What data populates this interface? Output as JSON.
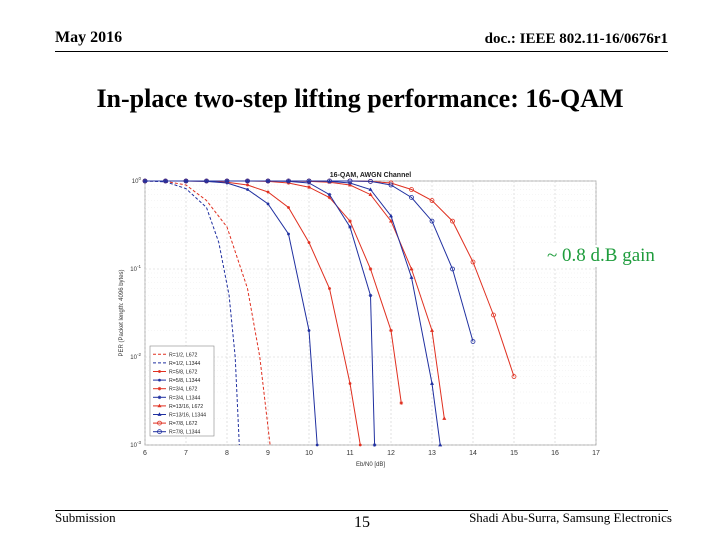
{
  "header": {
    "date": "May 2016",
    "doc_id": "doc.: IEEE 802.11-16/0676r1"
  },
  "slide": {
    "title": "In-place two-step lifting performance: 16-QAM",
    "annotation": "~ 0.8 d.B gain"
  },
  "footer": {
    "submission": "Submission",
    "page_number": "15",
    "author": "Shadi Abu-Surra, Samsung Electronics"
  },
  "chart_data": {
    "type": "line",
    "title": "16-QAM, AWGN Channel",
    "xlabel": "Eb/N0 [dB]",
    "ylabel": "PER (Packet length: 4096 bytes)",
    "xlim": [
      6,
      17
    ],
    "ylim": [
      0.001,
      1
    ],
    "yscale": "log",
    "x_ticks": [
      "6",
      "7",
      "8",
      "9",
      "10",
      "11",
      "12",
      "13",
      "14",
      "15",
      "16",
      "17"
    ],
    "y_ticks": [
      {
        "value": 1,
        "label": "10^0"
      },
      {
        "value": 0.1,
        "label": "10^-1"
      },
      {
        "value": 0.01,
        "label": "10^-2"
      },
      {
        "value": 0.001,
        "label": "10^-3"
      }
    ],
    "grid": true,
    "legend_position": "bottom-left",
    "series": [
      {
        "name": "R=1/2, L672",
        "color": "#e03020",
        "dash": true,
        "marker": "none",
        "x": [
          6,
          6.5,
          7,
          7.5,
          8,
          8.5,
          8.8,
          9.05
        ],
        "y": [
          1,
          0.99,
          0.9,
          0.6,
          0.3,
          0.06,
          0.01,
          0.001
        ]
      },
      {
        "name": "R=1/2, L1344",
        "color": "#2030a0",
        "dash": true,
        "marker": "none",
        "x": [
          6,
          6.5,
          7,
          7.5,
          7.8,
          8.05,
          8.2,
          8.3
        ],
        "y": [
          1,
          0.98,
          0.82,
          0.5,
          0.2,
          0.05,
          0.01,
          0.001
        ]
      },
      {
        "name": "R=5/8, L672",
        "color": "#e03020",
        "dash": false,
        "marker": "dot",
        "x": [
          6,
          6.5,
          7,
          7.5,
          8,
          8.5,
          9,
          9.5,
          10,
          10.5,
          11,
          11.25
        ],
        "y": [
          1,
          1,
          1,
          0.99,
          0.97,
          0.9,
          0.75,
          0.5,
          0.2,
          0.06,
          0.005,
          0.001
        ]
      },
      {
        "name": "R=5/8, L1344",
        "color": "#2030a0",
        "dash": false,
        "marker": "dot",
        "x": [
          6,
          6.5,
          7,
          7.5,
          8,
          8.5,
          9,
          9.5,
          10,
          10.2
        ],
        "y": [
          1,
          1,
          1,
          0.99,
          0.95,
          0.8,
          0.55,
          0.25,
          0.02,
          0.001
        ]
      },
      {
        "name": "R=3/4, L672",
        "color": "#e03020",
        "dash": false,
        "marker": "star",
        "x": [
          6,
          6.5,
          7,
          7.5,
          8,
          8.5,
          9,
          9.5,
          10,
          10.5,
          11,
          11.5,
          12,
          12.25
        ],
        "y": [
          1,
          1,
          1,
          1,
          1,
          1,
          0.99,
          0.95,
          0.85,
          0.65,
          0.35,
          0.1,
          0.02,
          0.003
        ]
      },
      {
        "name": "R=3/4, L1344",
        "color": "#2030a0",
        "dash": false,
        "marker": "star",
        "x": [
          6,
          6.5,
          7,
          7.5,
          8,
          8.5,
          9,
          9.5,
          10,
          10.5,
          11,
          11.5,
          11.6
        ],
        "y": [
          1,
          1,
          1,
          1,
          1,
          1,
          1,
          0.99,
          0.95,
          0.7,
          0.3,
          0.05,
          0.001
        ]
      },
      {
        "name": "R=13/16, L672",
        "color": "#e03020",
        "dash": false,
        "marker": "triangle",
        "x": [
          6,
          6.5,
          7,
          7.5,
          8,
          8.5,
          9,
          9.5,
          10,
          10.5,
          11,
          11.5,
          12,
          12.5,
          13,
          13.3
        ],
        "y": [
          1,
          1,
          1,
          1,
          1,
          1,
          1,
          1,
          0.99,
          0.97,
          0.9,
          0.7,
          0.35,
          0.1,
          0.02,
          0.002
        ]
      },
      {
        "name": "R=13/16, L1344",
        "color": "#2030a0",
        "dash": false,
        "marker": "triangle",
        "x": [
          6,
          6.5,
          7,
          7.5,
          8,
          8.5,
          9,
          9.5,
          10,
          10.5,
          11,
          11.5,
          12,
          12.5,
          13,
          13.2
        ],
        "y": [
          1,
          1,
          1,
          1,
          1,
          1,
          1,
          1,
          1,
          0.99,
          0.95,
          0.8,
          0.4,
          0.08,
          0.005,
          0.001
        ]
      },
      {
        "name": "R=7/8, L672",
        "color": "#e03020",
        "dash": false,
        "marker": "circle",
        "x": [
          6,
          6.5,
          7,
          7.5,
          8,
          8.5,
          9,
          9.5,
          10,
          10.5,
          11,
          11.5,
          12,
          12.5,
          13,
          13.5,
          14,
          14.5,
          15
        ],
        "y": [
          1,
          1,
          1,
          1,
          1,
          1,
          1,
          1,
          1,
          1,
          1,
          0.99,
          0.95,
          0.8,
          0.6,
          0.35,
          0.12,
          0.03,
          0.006
        ]
      },
      {
        "name": "R=7/8, L1344",
        "color": "#2030a0",
        "dash": false,
        "marker": "circle",
        "x": [
          6,
          6.5,
          7,
          7.5,
          8,
          8.5,
          9,
          9.5,
          10,
          10.5,
          11,
          11.5,
          12,
          12.5,
          13,
          13.5,
          14
        ],
        "y": [
          1,
          1,
          1,
          1,
          1,
          1,
          1,
          1,
          1,
          1,
          1,
          0.99,
          0.9,
          0.65,
          0.35,
          0.1,
          0.015
        ]
      }
    ]
  }
}
